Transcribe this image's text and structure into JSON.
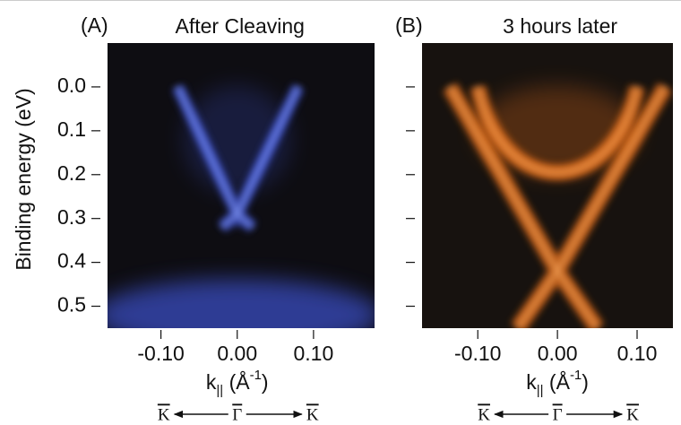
{
  "chart_data": [
    {
      "type": "image",
      "panel_label": "(A)",
      "title": "After Cleaving",
      "y_label": "Binding energy (eV)",
      "x_label": [
        "k",
        "||",
        " (Å",
        "-1",
        ")"
      ],
      "direction_labels": [
        "K",
        "Γ",
        "K"
      ],
      "color": "#4a63ff",
      "background": "#0e0d12",
      "xlim": [
        -0.17,
        0.18
      ],
      "xticks": [
        {
          "value": -0.1,
          "label": "-0.10"
        },
        {
          "value": 0,
          "label": "0.00"
        },
        {
          "value": 0.1,
          "label": "0.10"
        }
      ],
      "ylim": [
        -0.1,
        0.55
      ],
      "yticks": [
        {
          "value": 0,
          "label": "0.0"
        },
        {
          "value": 0.1,
          "label": "0.1"
        },
        {
          "value": 0.2,
          "label": "0.2"
        },
        {
          "value": 0.3,
          "label": "0.3"
        },
        {
          "value": 0.4,
          "label": "0.4"
        },
        {
          "value": 0.5,
          "label": "0.5"
        }
      ]
    },
    {
      "type": "image",
      "panel_label": "(B)",
      "title": "3 hours later",
      "x_label": [
        "k",
        "||",
        " (Å",
        "-1",
        ")"
      ],
      "direction_labels": [
        "K",
        "Γ",
        "K"
      ],
      "color": "#ff7a1c",
      "background": "#17120f",
      "xlim": [
        -0.17,
        0.145
      ],
      "xticks": [
        {
          "value": -0.1,
          "label": "-0.10"
        },
        {
          "value": 0,
          "label": "0.00"
        },
        {
          "value": 0.1,
          "label": "0.10"
        }
      ],
      "ylim": [
        -0.1,
        0.55
      ],
      "yticks": [
        0,
        0.1,
        0.2,
        0.3,
        0.4,
        0.5
      ]
    }
  ]
}
